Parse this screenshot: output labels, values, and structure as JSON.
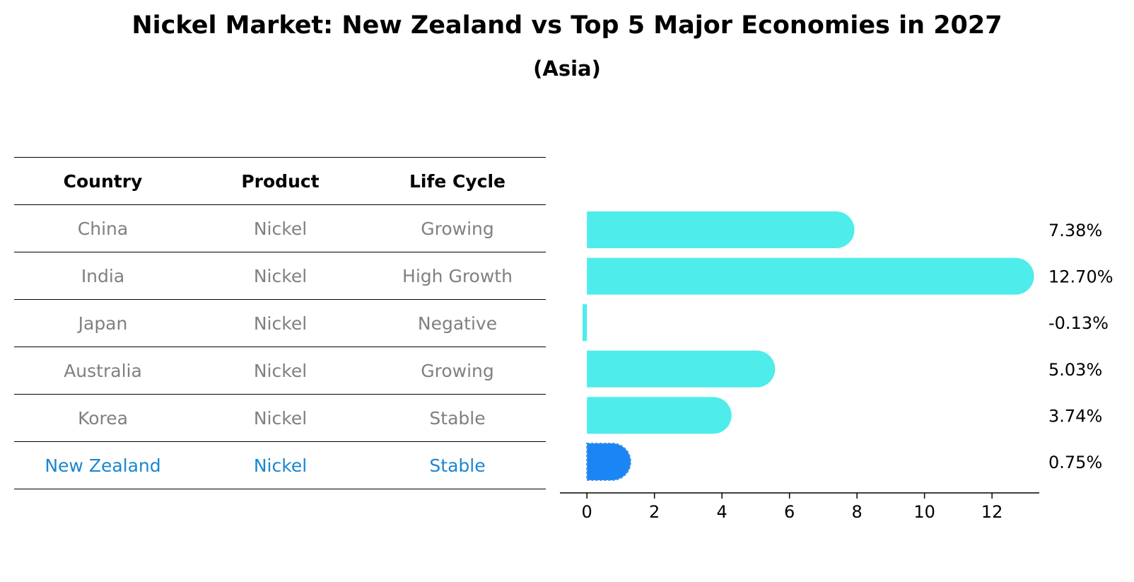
{
  "title": "Nickel Market: New Zealand vs Top 5 Major Economies in 2027",
  "subtitle": "(Asia)",
  "table": {
    "headers": [
      "Country",
      "Product",
      "Life Cycle"
    ],
    "rows": [
      [
        "China",
        "Nickel",
        "Growing"
      ],
      [
        "India",
        "Nickel",
        "High Growth"
      ],
      [
        "Japan",
        "Nickel",
        "Negative"
      ],
      [
        "Australia",
        "Nickel",
        "Growing"
      ],
      [
        "Korea",
        "Nickel",
        "Stable"
      ],
      [
        "New Zealand",
        "Nickel",
        "Stable"
      ]
    ],
    "highlight_row": "New Zealand",
    "highlight_color": "#1a86d0",
    "text_color": "#808080"
  },
  "chart_data": {
    "type": "bar",
    "orientation": "horizontal",
    "categories": [
      "China",
      "India",
      "Japan",
      "Australia",
      "Korea",
      "New Zealand"
    ],
    "values": [
      7.38,
      12.7,
      -0.13,
      5.03,
      3.74,
      0.75
    ],
    "value_labels": [
      "7.38%",
      "12.70%",
      "-0.13%",
      "5.03%",
      "3.74%",
      "0.75%"
    ],
    "xlim": [
      -0.8,
      13.4
    ],
    "xticks": [
      0,
      2,
      4,
      6,
      8,
      10,
      12
    ],
    "grid": false,
    "bar_color": "#4eeceb",
    "highlight_category": "New Zealand",
    "highlight_color": "#1a86f5"
  }
}
